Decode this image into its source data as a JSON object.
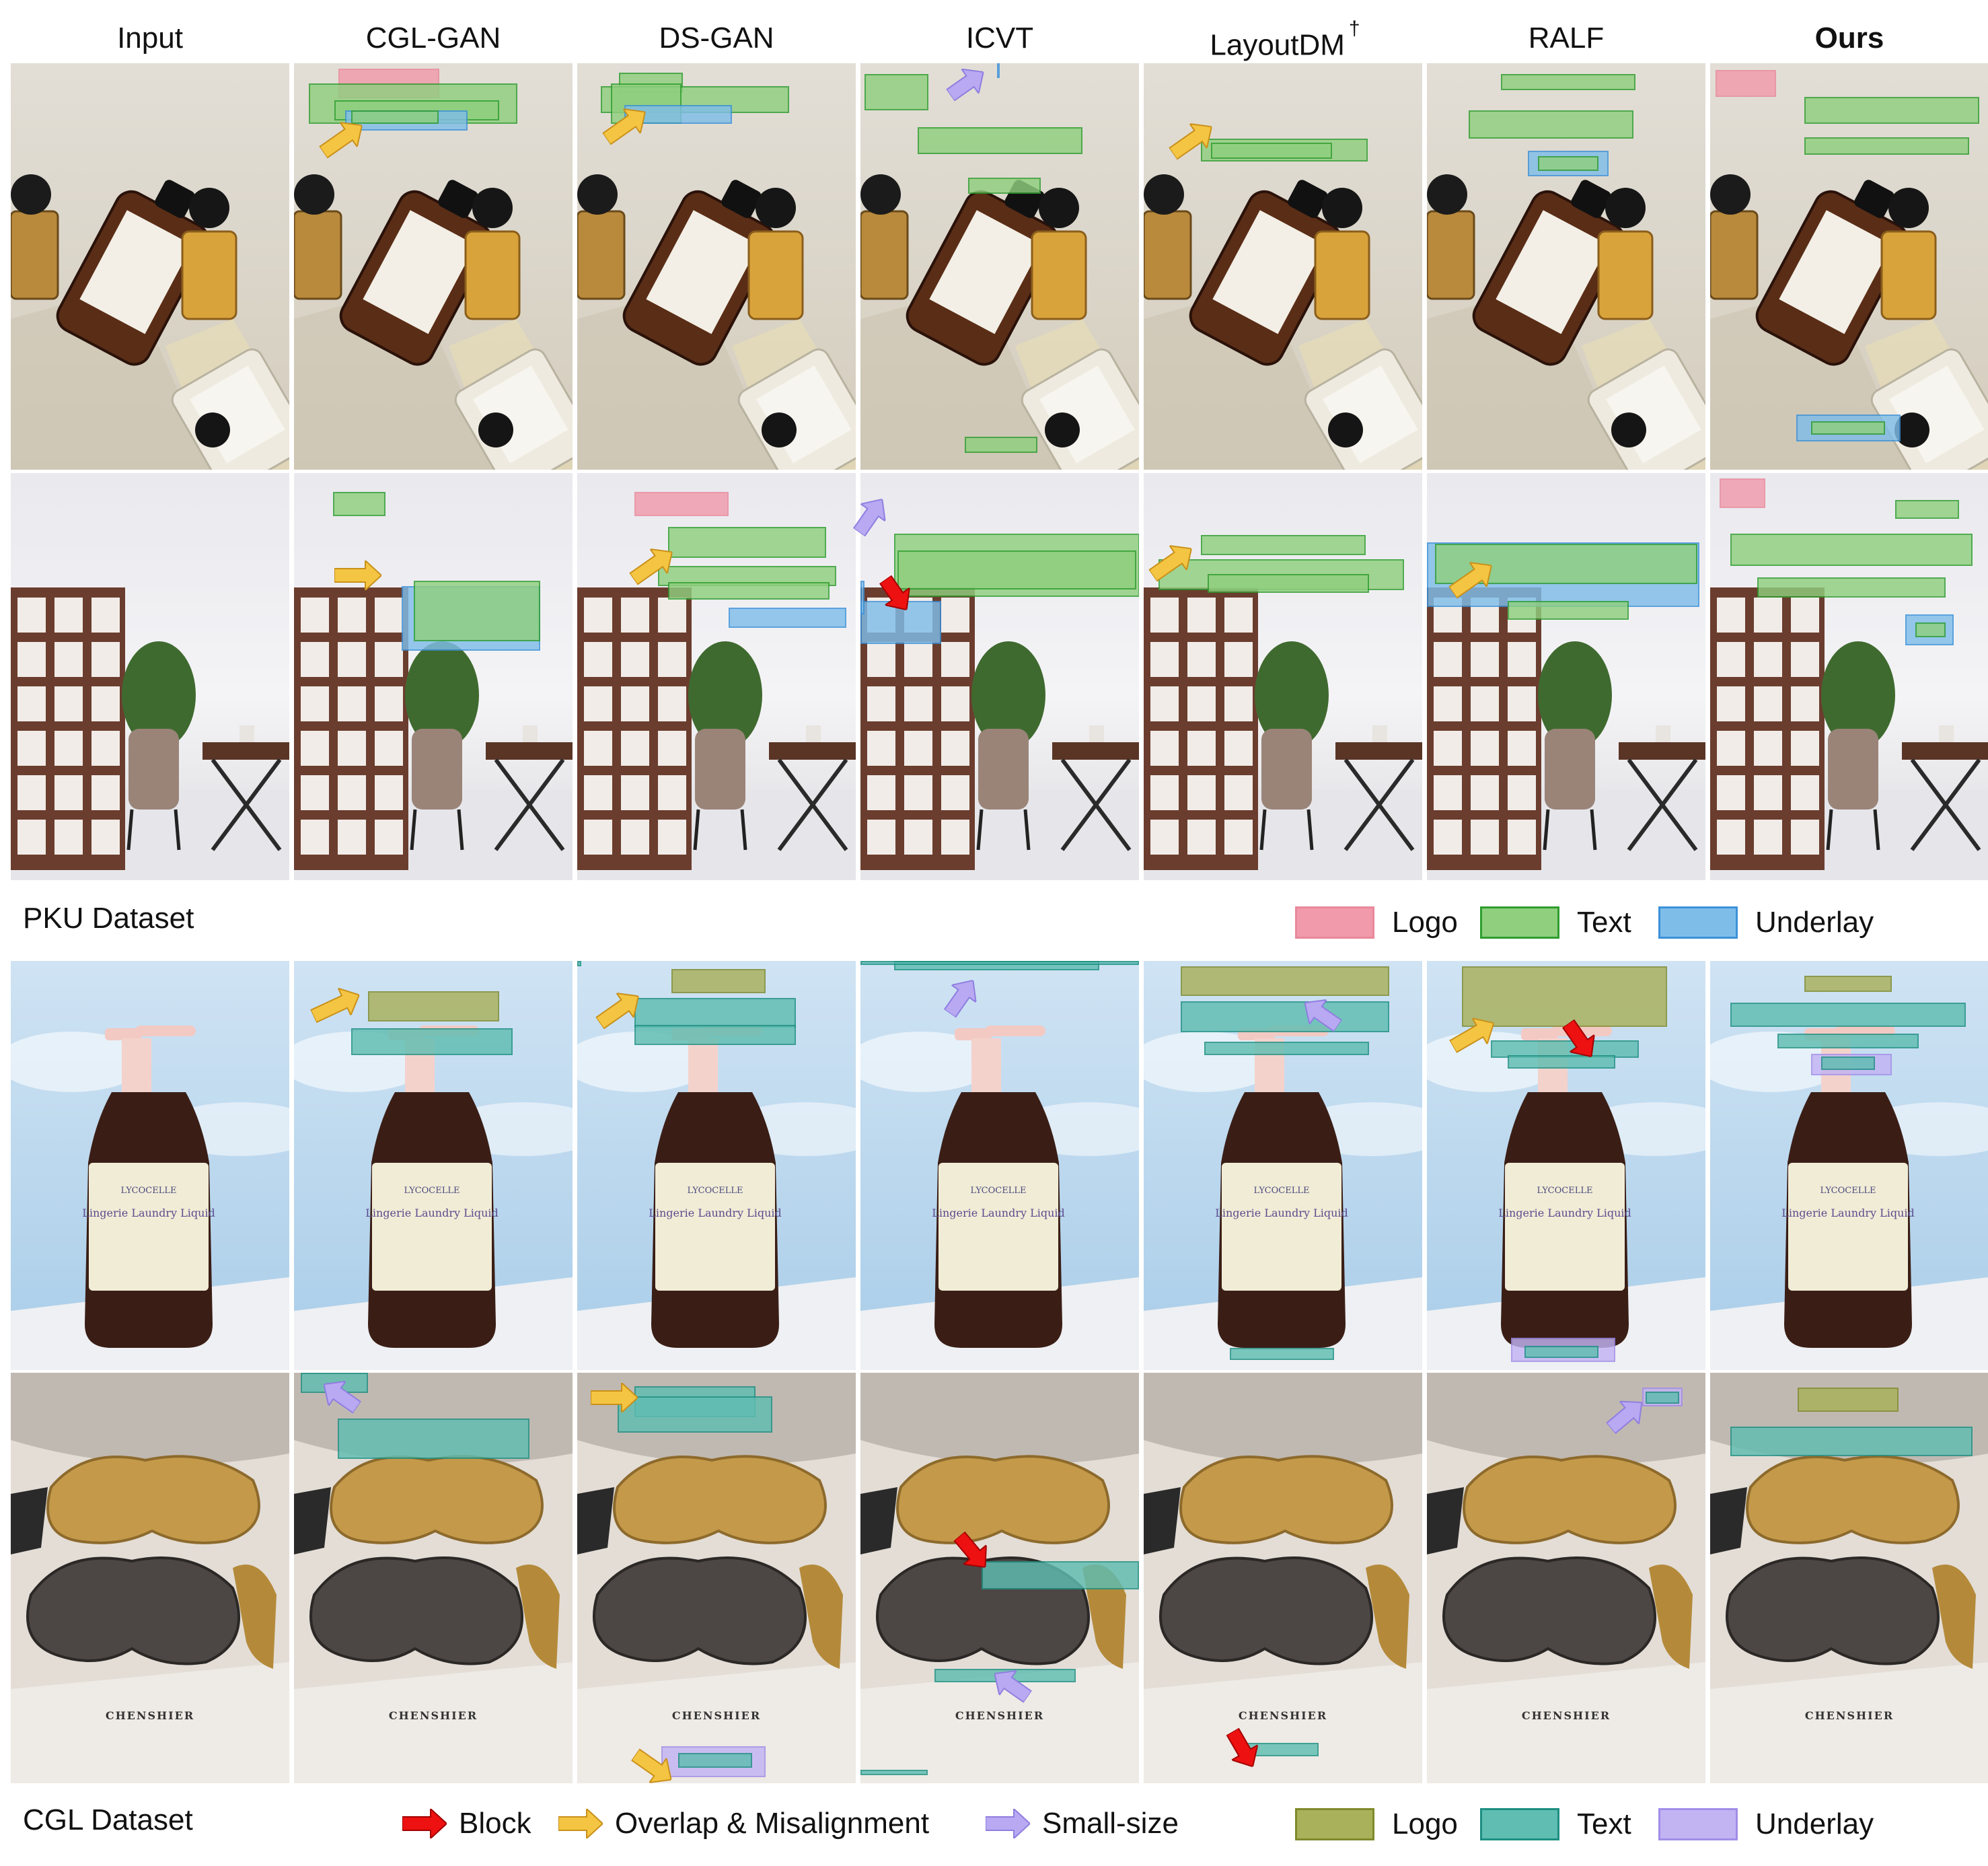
{
  "columns": [
    "Input",
    "CGL-GAN",
    "DS-GAN",
    "ICVT",
    "LayoutDM",
    "RALF",
    "Ours"
  ],
  "layoutdm_mark": "†",
  "pku": {
    "label": "PKU Dataset",
    "legend": [
      {
        "label": "Logo",
        "fill": "#f19aab",
        "stroke": "#e9889b"
      },
      {
        "label": "Text",
        "fill": "#8fcf7e",
        "stroke": "#2f9d2f"
      },
      {
        "label": "Underlay",
        "fill": "#7fbde9",
        "stroke": "#3b91d9"
      }
    ]
  },
  "cgl": {
    "label": "CGL Dataset",
    "arrows": [
      {
        "label": "Block",
        "color": "#ee1111"
      },
      {
        "label": "Overlap & Misalignment",
        "color": "#f4c542"
      },
      {
        "label": "Small-size",
        "color": "#b8a9f2"
      }
    ],
    "legend": [
      {
        "label": "Logo",
        "fill": "#a9b15a",
        "stroke": "#7f8a2c"
      },
      {
        "label": "Text",
        "fill": "#5fbdb1",
        "stroke": "#1d8f82"
      },
      {
        "label": "Underlay",
        "fill": "#c2b3f3",
        "stroke": "#a28de8"
      }
    ]
  },
  "image_text": {
    "bottle_brand": "LYCOCELLE",
    "bottle_product": "Lingerie Laundry Liquid",
    "mask_brand": "CHENSHIER"
  }
}
